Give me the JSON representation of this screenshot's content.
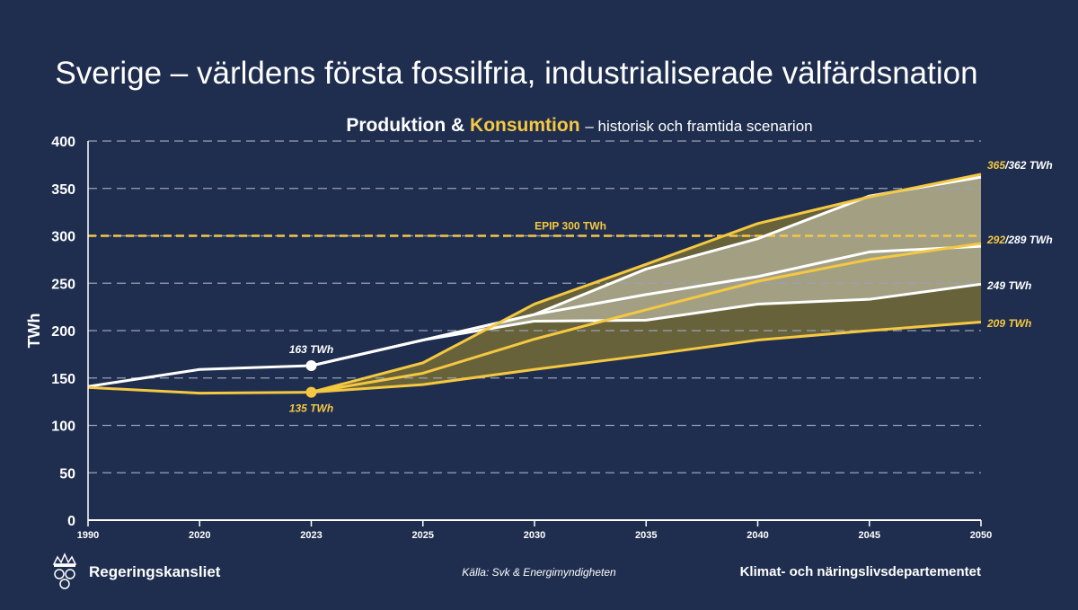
{
  "title": "Sverige – världens första fossilfria, industrialiserade välfärdsnation",
  "subtitle": {
    "part1": "Produktion &",
    "part2": "Konsumtion",
    "part3": "– historisk och framtida scenarion"
  },
  "footer": {
    "brand": "Regeringskansliet",
    "source": "Källa: Svk & Energimyndigheten",
    "department": "Klimat- och näringslivsdepartementet"
  },
  "colors": {
    "background": "#1f2e4f",
    "production": "#ffffff",
    "consumption": "#f5c842",
    "grid": "#9aa3b5",
    "band_light": "#a9a68c",
    "band_dark": "#6b6538"
  },
  "chart_data": {
    "type": "area",
    "ylabel": "TWh",
    "xlabel": "",
    "categories": [
      "1990",
      "2020",
      "2023",
      "2025",
      "2030",
      "2035",
      "2040",
      "2045",
      "2050"
    ],
    "yticks": [
      0,
      50,
      100,
      150,
      200,
      250,
      300,
      350,
      400
    ],
    "ylim": [
      0,
      400
    ],
    "grid": true,
    "series": [
      {
        "role": "production",
        "scenario": "historical",
        "values": [
          141,
          159,
          163,
          null,
          null,
          null,
          null,
          null,
          null
        ]
      },
      {
        "role": "production",
        "scenario": "high",
        "values": [
          null,
          null,
          163,
          190,
          217,
          265,
          297,
          342,
          362
        ]
      },
      {
        "role": "production",
        "scenario": "mid",
        "values": [
          null,
          null,
          163,
          190,
          217,
          238,
          257,
          283,
          289
        ]
      },
      {
        "role": "production",
        "scenario": "low",
        "values": [
          null,
          null,
          163,
          190,
          210,
          211,
          228,
          233,
          249
        ]
      },
      {
        "role": "consumption",
        "scenario": "historical",
        "values": [
          140,
          134,
          135,
          null,
          null,
          null,
          null,
          null,
          null
        ]
      },
      {
        "role": "consumption",
        "scenario": "high",
        "values": [
          null,
          null,
          135,
          166,
          228,
          270,
          313,
          341,
          365
        ]
      },
      {
        "role": "consumption",
        "scenario": "mid",
        "values": [
          null,
          null,
          135,
          155,
          191,
          222,
          252,
          275,
          292
        ]
      },
      {
        "role": "consumption",
        "scenario": "low",
        "values": [
          null,
          null,
          135,
          143,
          159,
          174,
          190,
          200,
          209
        ]
      }
    ],
    "reference_line": {
      "value": 300,
      "label": "EPIP 300 TWh"
    },
    "annotations": {
      "prod_2023": "163 TWh",
      "cons_2023": "135 TWh",
      "end_high_cons": "365",
      "end_high_prod": "/362 TWh",
      "end_mid_cons": "292",
      "end_mid_prod": "/289 TWh",
      "end_low_prod": "249 TWh",
      "end_low_cons": "209 TWh"
    }
  }
}
